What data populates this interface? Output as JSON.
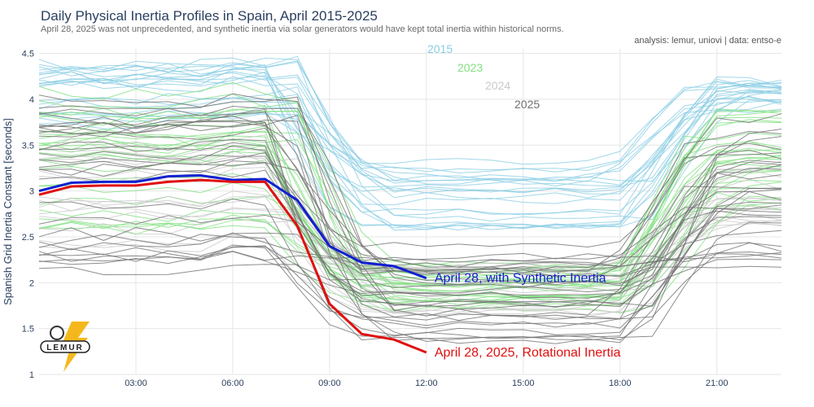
{
  "header": {
    "title": "Daily Physical Inertia Profiles in Spain, April 2015-2025",
    "subtitle": "April 28, 2025 was not unprecedented, and synthetic inertia via solar generators would have kept total inertia within historical norms.",
    "credit": "analysis: lemur, uniovi | data: entso-e"
  },
  "logo": {
    "text": "LEMUR"
  },
  "chart_data": {
    "type": "line",
    "title": "Daily Physical Inertia Profiles in Spain, April 2015-2025",
    "ylabel": "Spanish Grid Inertia Constant [seconds]",
    "xlabel": "",
    "xlim": [
      0,
      23
    ],
    "ylim": [
      1,
      4.55
    ],
    "xticks": [
      {
        "v": 3,
        "label": "03:00"
      },
      {
        "v": 6,
        "label": "06:00"
      },
      {
        "v": 9,
        "label": "09:00"
      },
      {
        "v": 12,
        "label": "12:00"
      },
      {
        "v": 15,
        "label": "15:00"
      },
      {
        "v": 18,
        "label": "18:00"
      },
      {
        "v": 21,
        "label": "21:00"
      }
    ],
    "yticks": [
      {
        "v": 1,
        "label": "1"
      },
      {
        "v": 1.5,
        "label": "1.5"
      },
      {
        "v": 2,
        "label": "2"
      },
      {
        "v": 2.5,
        "label": "2.5"
      },
      {
        "v": 3,
        "label": "3"
      },
      {
        "v": 3.5,
        "label": "3.5"
      },
      {
        "v": 4,
        "label": "4"
      },
      {
        "v": 4.5,
        "label": "4.5"
      }
    ],
    "background_groups": [
      {
        "name": "2015",
        "color": "#89cde3",
        "seed": 3,
        "count": 22,
        "morning": [
          3.7,
          4.4
        ],
        "dip": [
          2.6,
          3.4
        ],
        "evening": [
          3.9,
          4.2
        ]
      },
      {
        "name": "2023",
        "color": "#7fe07f",
        "seed": 7,
        "count": 26,
        "morning": [
          2.6,
          4.1
        ],
        "dip": [
          1.7,
          2.2
        ],
        "evening": [
          2.8,
          3.9
        ]
      },
      {
        "name": "2024",
        "color": "#c9c9c9",
        "seed": 11,
        "count": 14,
        "morning": [
          2.4,
          3.6
        ],
        "dip": [
          1.6,
          2.2
        ],
        "evening": [
          2.6,
          3.6
        ]
      },
      {
        "name": "2025",
        "color": "#707070",
        "seed": 19,
        "count": 30,
        "morning": [
          2.1,
          4.0
        ],
        "dip": [
          1.35,
          2.5
        ],
        "evening": [
          2.2,
          3.9
        ]
      }
    ],
    "series": [
      {
        "name": "April 28, with Synthetic Inertia",
        "color": "#1020d0",
        "x": [
          0,
          1,
          2,
          3,
          4,
          5,
          6,
          7,
          8,
          9,
          10,
          11,
          12
        ],
        "values": [
          3.0,
          3.09,
          3.1,
          3.1,
          3.16,
          3.17,
          3.12,
          3.13,
          2.9,
          2.4,
          2.22,
          2.18,
          2.05
        ]
      },
      {
        "name": "April 28, 2025, Rotational Inertia",
        "color": "#e01010",
        "x": [
          0,
          1,
          2,
          3,
          4,
          5,
          6,
          7,
          8,
          9,
          10,
          11,
          12
        ],
        "values": [
          2.96,
          3.05,
          3.06,
          3.06,
          3.1,
          3.12,
          3.1,
          3.1,
          2.62,
          1.77,
          1.44,
          1.38,
          1.24
        ]
      }
    ]
  }
}
